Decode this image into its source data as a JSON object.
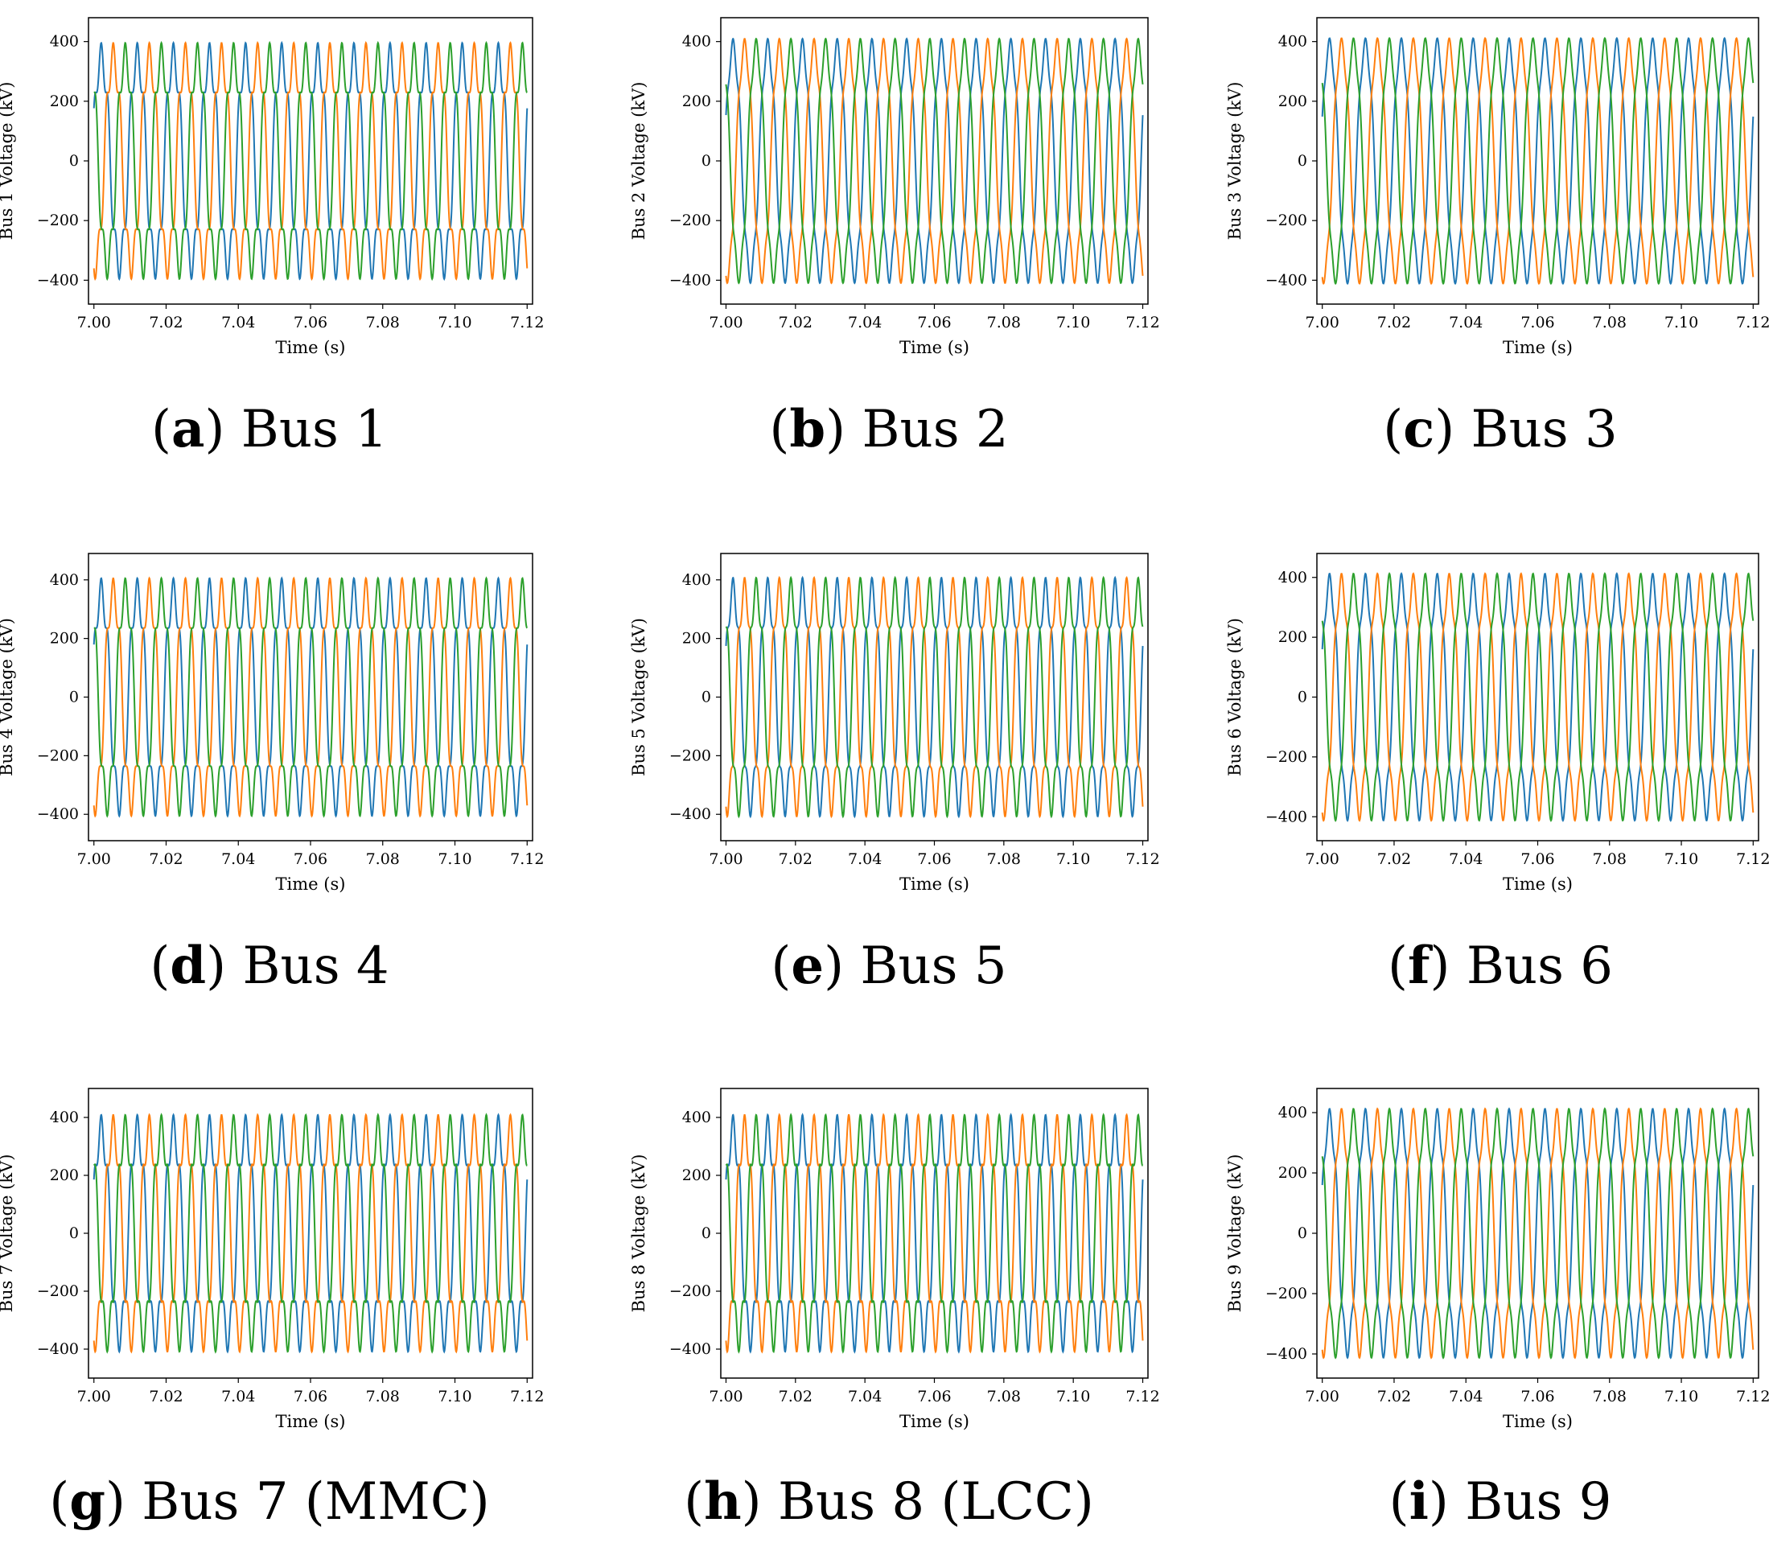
{
  "figure": {
    "colors": [
      "#1f77b4",
      "#ff7f0e",
      "#2ca02c"
    ]
  },
  "chart_data": [
    {
      "id": "a",
      "caption_letter": "a",
      "caption_text": "Bus 1",
      "type": "line",
      "xlabel": "Time (s)",
      "ylabel": "Bus 1 Voltage (kV)",
      "xlim": [
        6.9985,
        7.1215
      ],
      "ylim": [
        -480,
        480
      ],
      "xticks": [
        "7.00",
        "7.02",
        "7.04",
        "7.06",
        "7.08",
        "7.10",
        "7.12"
      ],
      "yticks": [
        "400",
        "200",
        "0",
        "−200",
        "−400"
      ],
      "frequency_hz": 100,
      "amplitude_kv": 360,
      "harmonic_kv": 55,
      "series": [
        {
          "phase_deg": 0,
          "color": "#1f77b4"
        },
        {
          "phase_deg": -120,
          "color": "#ff7f0e"
        },
        {
          "phase_deg": 120,
          "color": "#2ca02c"
        }
      ]
    },
    {
      "id": "b",
      "caption_letter": "b",
      "caption_text": "Bus 2",
      "type": "line",
      "xlabel": "Time (s)",
      "ylabel": "Bus 2 Voltage (kV)",
      "xlim": [
        6.9985,
        7.1215
      ],
      "ylim": [
        -480,
        480
      ],
      "xticks": [
        "7.00",
        "7.02",
        "7.04",
        "7.06",
        "7.08",
        "7.10",
        "7.12"
      ],
      "yticks": [
        "400",
        "200",
        "0",
        "−200",
        "−400"
      ],
      "frequency_hz": 100,
      "amplitude_kv": 390,
      "harmonic_kv": 30,
      "series": [
        {
          "phase_deg": 0,
          "color": "#1f77b4"
        },
        {
          "phase_deg": -120,
          "color": "#ff7f0e"
        },
        {
          "phase_deg": 120,
          "color": "#2ca02c"
        }
      ]
    },
    {
      "id": "c",
      "caption_letter": "c",
      "caption_text": "Bus 3",
      "type": "line",
      "xlabel": "Time (s)",
      "ylabel": "Bus 3 Voltage (kV)",
      "xlim": [
        6.9985,
        7.1215
      ],
      "ylim": [
        -480,
        480
      ],
      "xticks": [
        "7.00",
        "7.02",
        "7.04",
        "7.06",
        "7.08",
        "7.10",
        "7.12"
      ],
      "yticks": [
        "400",
        "200",
        "0",
        "−200",
        "−400"
      ],
      "frequency_hz": 100,
      "amplitude_kv": 395,
      "harmonic_kv": 25,
      "series": [
        {
          "phase_deg": 0,
          "color": "#1f77b4"
        },
        {
          "phase_deg": -120,
          "color": "#ff7f0e"
        },
        {
          "phase_deg": 120,
          "color": "#2ca02c"
        }
      ]
    },
    {
      "id": "d",
      "caption_letter": "d",
      "caption_text": "Bus 4",
      "type": "line",
      "xlabel": "Time (s)",
      "ylabel": "Bus 4 Voltage (kV)",
      "xlim": [
        6.9985,
        7.1215
      ],
      "ylim": [
        -490,
        490
      ],
      "xticks": [
        "7.00",
        "7.02",
        "7.04",
        "7.06",
        "7.08",
        "7.10",
        "7.12"
      ],
      "yticks": [
        "400",
        "200",
        "0",
        "−200",
        "−400"
      ],
      "frequency_hz": 100,
      "amplitude_kv": 370,
      "harmonic_kv": 55,
      "series": [
        {
          "phase_deg": 0,
          "color": "#1f77b4"
        },
        {
          "phase_deg": -120,
          "color": "#ff7f0e"
        },
        {
          "phase_deg": 120,
          "color": "#2ca02c"
        }
      ]
    },
    {
      "id": "e",
      "caption_letter": "e",
      "caption_text": "Bus 5",
      "type": "line",
      "xlabel": "Time (s)",
      "ylabel": "Bus 5 Voltage (kV)",
      "xlim": [
        6.9985,
        7.1215
      ],
      "ylim": [
        -490,
        490
      ],
      "xticks": [
        "7.00",
        "7.02",
        "7.04",
        "7.06",
        "7.08",
        "7.10",
        "7.12"
      ],
      "yticks": [
        "400",
        "200",
        "0",
        "−200",
        "−400"
      ],
      "frequency_hz": 100,
      "amplitude_kv": 375,
      "harmonic_kv": 50,
      "series": [
        {
          "phase_deg": 0,
          "color": "#1f77b4"
        },
        {
          "phase_deg": -120,
          "color": "#ff7f0e"
        },
        {
          "phase_deg": 120,
          "color": "#2ca02c"
        }
      ]
    },
    {
      "id": "f",
      "caption_letter": "f",
      "caption_text": "Bus 6",
      "type": "line",
      "xlabel": "Time (s)",
      "ylabel": "Bus 6 Voltage (kV)",
      "xlim": [
        6.9985,
        7.1215
      ],
      "ylim": [
        -480,
        480
      ],
      "xticks": [
        "7.00",
        "7.02",
        "7.04",
        "7.06",
        "7.08",
        "7.10",
        "7.12"
      ],
      "yticks": [
        "400",
        "200",
        "0",
        "−200",
        "−400"
      ],
      "frequency_hz": 100,
      "amplitude_kv": 390,
      "harmonic_kv": 35,
      "series": [
        {
          "phase_deg": 0,
          "color": "#1f77b4"
        },
        {
          "phase_deg": -120,
          "color": "#ff7f0e"
        },
        {
          "phase_deg": 120,
          "color": "#2ca02c"
        }
      ]
    },
    {
      "id": "g",
      "caption_letter": "g",
      "caption_text": "Bus 7 (MMC)",
      "type": "line",
      "xlabel": "Time (s)",
      "ylabel": "Bus 7 Voltage (kV)",
      "xlim": [
        6.9985,
        7.1215
      ],
      "ylim": [
        -500,
        500
      ],
      "xticks": [
        "7.00",
        "7.02",
        "7.04",
        "7.06",
        "7.08",
        "7.10",
        "7.12"
      ],
      "yticks": [
        "400",
        "200",
        "0",
        "−200",
        "−400"
      ],
      "frequency_hz": 100,
      "amplitude_kv": 370,
      "harmonic_kv": 60,
      "series": [
        {
          "phase_deg": 0,
          "color": "#1f77b4"
        },
        {
          "phase_deg": -120,
          "color": "#ff7f0e"
        },
        {
          "phase_deg": 120,
          "color": "#2ca02c"
        }
      ]
    },
    {
      "id": "h",
      "caption_letter": "h",
      "caption_text": "Bus 8 (LCC)",
      "type": "line",
      "xlabel": "Time (s)",
      "ylabel": "Bus 8 Voltage (kV)",
      "xlim": [
        6.9985,
        7.1215
      ],
      "ylim": [
        -500,
        500
      ],
      "xticks": [
        "7.00",
        "7.02",
        "7.04",
        "7.06",
        "7.08",
        "7.10",
        "7.12"
      ],
      "yticks": [
        "400",
        "200",
        "0",
        "−200",
        "−400"
      ],
      "frequency_hz": 100,
      "amplitude_kv": 370,
      "harmonic_kv": 60,
      "series": [
        {
          "phase_deg": 0,
          "color": "#1f77b4"
        },
        {
          "phase_deg": -120,
          "color": "#ff7f0e"
        },
        {
          "phase_deg": 120,
          "color": "#2ca02c"
        }
      ]
    },
    {
      "id": "i",
      "caption_letter": "i",
      "caption_text": "Bus 9",
      "type": "line",
      "xlabel": "Time (s)",
      "ylabel": "Bus 9 Voltage (kV)",
      "xlim": [
        6.9985,
        7.1215
      ],
      "ylim": [
        -480,
        480
      ],
      "xticks": [
        "7.00",
        "7.02",
        "7.04",
        "7.06",
        "7.08",
        "7.10",
        "7.12"
      ],
      "yticks": [
        "400",
        "200",
        "0",
        "−200",
        "−400"
      ],
      "frequency_hz": 100,
      "amplitude_kv": 390,
      "harmonic_kv": 35,
      "series": [
        {
          "phase_deg": 0,
          "color": "#1f77b4"
        },
        {
          "phase_deg": -120,
          "color": "#ff7f0e"
        },
        {
          "phase_deg": 120,
          "color": "#2ca02c"
        }
      ]
    }
  ]
}
